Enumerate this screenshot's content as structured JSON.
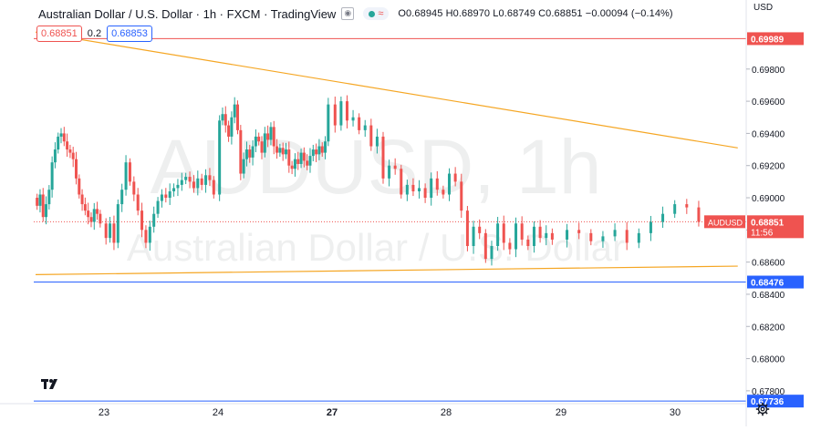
{
  "header": {
    "title": "Australian Dollar / U.S. Dollar · 1h · FXCM · TradingView",
    "ohlc": "O0.68945 H0.68970 L0.68749 C0.68851 −0.00094 (−0.14%)"
  },
  "quote": {
    "sell": "0.68851",
    "spread": "0.2",
    "buy": "0.68853"
  },
  "axis": {
    "currency": "USD"
  },
  "watermark": {
    "symbol": "AUDUSD, 1h",
    "name": "Australian Dollar / U.S. Dollar"
  },
  "price_tag": {
    "symbol": "AUDUSD",
    "price": "0.68851",
    "countdown": "11:56"
  },
  "colors": {
    "up": "#26a69a",
    "down": "#ef5350",
    "trend": "#f5a623",
    "hline_red": "#ef5350",
    "hline_blue": "#2962ff"
  },
  "icons": {
    "logo": "tradingview-logo-icon",
    "settings": "gear-icon"
  },
  "chart_data": {
    "type": "candlestick",
    "timeframe": "1h",
    "y_range": [
      0.6772,
      0.7015
    ],
    "y_ticks": [
      "0.69800",
      "0.69600",
      "0.69400",
      "0.69200",
      "0.69000",
      "0.68800",
      "0.68600",
      "0.68400",
      "0.68200",
      "0.68000",
      "0.67800"
    ],
    "x_labels": [
      {
        "label": "23",
        "day": 0
      },
      {
        "label": "24",
        "day": 1
      },
      {
        "label": "27",
        "day": 2
      },
      {
        "label": "28",
        "day": 3
      },
      {
        "label": "29",
        "day": 4
      },
      {
        "label": "30",
        "day": 5
      }
    ],
    "horizontal_lines": [
      {
        "price": 0.69989,
        "label": "0.69989",
        "color": "#ef5350"
      },
      {
        "price": 0.68476,
        "label": "0.68476",
        "color": "#2962ff"
      },
      {
        "price": 0.67736,
        "label": "0.67736",
        "color": "#2962ff"
      }
    ],
    "trendlines": [
      {
        "from": {
          "day": -0.6,
          "price": 0.7003
        },
        "to": {
          "day": 5.55,
          "price": 0.6931
        }
      },
      {
        "from": {
          "day": -0.6,
          "price": 0.68522
        },
        "to": {
          "day": 5.55,
          "price": 0.68575
        }
      }
    ],
    "last_price": 0.68851,
    "days": [
      {
        "closes": [
          0.6895,
          0.6902,
          0.6888,
          0.6896,
          0.6905,
          0.6922,
          0.693,
          0.6938,
          0.694,
          0.6935,
          0.693,
          0.6928,
          0.6924,
          0.6912,
          0.6902,
          0.6896,
          0.6892,
          0.6888,
          0.6885,
          0.6893,
          0.689,
          0.6884
        ]
      },
      {
        "closes": [
          0.6875,
          0.6884,
          0.6872,
          0.6896,
          0.6905,
          0.6922,
          0.691,
          0.6902,
          0.6892,
          0.688,
          0.6872,
          0.6882,
          0.689,
          0.6898,
          0.6902,
          0.69,
          0.6904,
          0.6906,
          0.6908,
          0.6911,
          0.6913,
          0.691,
          0.6906,
          0.6912,
          0.6908,
          0.6914,
          0.6911,
          0.6902
        ]
      },
      {
        "closes": [
          0.6948,
          0.6952,
          0.6945,
          0.6938,
          0.695,
          0.6958,
          0.6942,
          0.6915,
          0.6924,
          0.693,
          0.6925,
          0.6932,
          0.6938,
          0.6935,
          0.6928,
          0.694,
          0.6936,
          0.6944,
          0.6932,
          0.6928,
          0.6931,
          0.6927,
          0.693,
          0.692,
          0.6918,
          0.6924,
          0.6921,
          0.6928,
          0.6923,
          0.692,
          0.6926,
          0.693,
          0.6927,
          0.6932,
          0.6928,
          0.6935,
          0.6958
        ]
      },
      {
        "closes": [
          0.6945,
          0.696,
          0.6948,
          0.695,
          0.6942,
          0.6945,
          0.6932,
          0.6938,
          0.6912,
          0.692,
          0.6918,
          0.6902,
          0.6908,
          0.6904,
          0.6906,
          0.69,
          0.6912,
          0.6905,
          0.6902,
          0.6915,
          0.691,
          0.6892,
          0.687,
          0.6882,
          0.6878,
          0.6862,
          0.687,
          0.6884,
          0.6872,
          0.6868,
          0.6884,
          0.6874,
          0.687,
          0.6882,
          0.6875,
          0.6878,
          0.6874
        ]
      },
      {
        "closes": [
          0.688,
          0.6878,
          0.6873,
          0.6876,
          0.688,
          0.6872,
          0.6878,
          0.6885,
          0.689,
          0.6896,
          0.6894,
          0.6885
        ]
      }
    ]
  }
}
